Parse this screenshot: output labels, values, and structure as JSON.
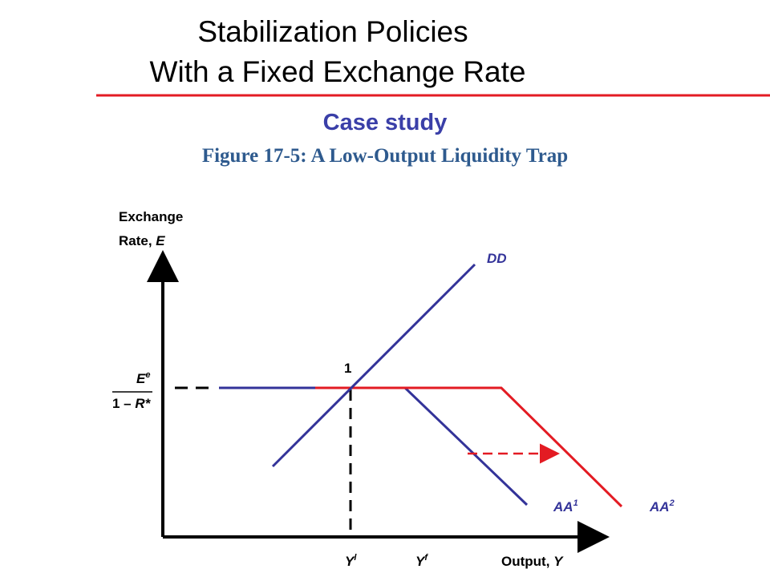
{
  "header": {
    "title_line1": "Stabilization Policies",
    "title_line2": "With a Fixed Exchange Rate",
    "section": "Case study",
    "figure_title": "Figure 17-5: A Low-Output Liquidity Trap"
  },
  "diagram": {
    "y_axis_label": {
      "line1": "Exchange",
      "line2_text": "Rate, ",
      "line2_var": "E"
    },
    "x_axis_label": {
      "text": "Output, ",
      "var": "Y"
    },
    "curves": [
      {
        "base": "DD"
      },
      {
        "base": "AA",
        "sup": "1"
      },
      {
        "base": "AA",
        "sup": "2"
      }
    ],
    "point_label": "1",
    "y_level": {
      "num_base": "E",
      "num_sup": "e",
      "den_text": "1 – ",
      "den_var": "R*"
    },
    "x_levels": [
      {
        "base": "Y",
        "sup": "l"
      },
      {
        "base": "Y",
        "sup": "f"
      }
    ]
  }
}
